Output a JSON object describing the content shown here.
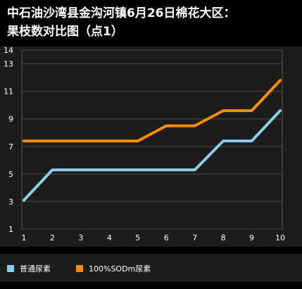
{
  "title_line1": "中石油沙湾县金沟河镇6月26日棉花大区：",
  "title_line2": "果枝数对比图（点1）",
  "chart_data": {
    "type": "line",
    "x": [
      1,
      2,
      3,
      4,
      5,
      6,
      7,
      8,
      9,
      10
    ],
    "xlabel": "",
    "ylabel": "",
    "ylim": [
      1,
      14
    ],
    "yticks": [
      1,
      3,
      5,
      7,
      9,
      11,
      13,
      14
    ],
    "grid": true,
    "legend_position": "bottom",
    "series": [
      {
        "name": "普通尿素",
        "color": "#87ceeb",
        "values": [
          3.1,
          5.3,
          5.3,
          5.3,
          5.3,
          5.3,
          5.3,
          7.4,
          7.4,
          9.6
        ]
      },
      {
        "name": "100%SODm尿素",
        "color": "#ff8c00",
        "values": [
          7.4,
          7.4,
          7.4,
          7.4,
          7.4,
          8.5,
          8.5,
          9.6,
          9.6,
          11.8
        ]
      }
    ]
  }
}
